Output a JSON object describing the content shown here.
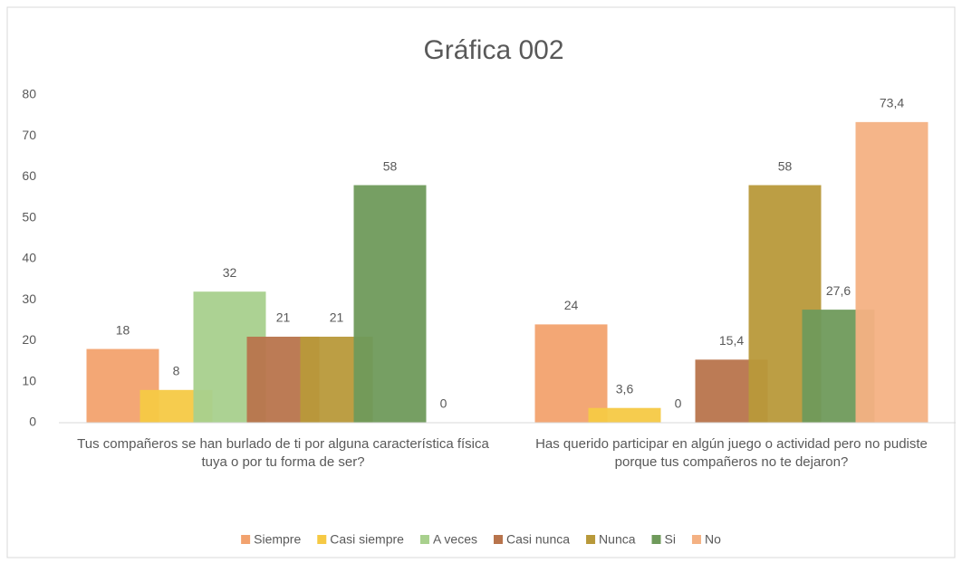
{
  "chart_data": {
    "type": "bar",
    "title": "Gráfica 002",
    "categories": [
      "Tus compañeros se han burlado de ti por alguna característica física tuya o por tu forma de ser?",
      "Has querido participar en algún juego o actividad pero no pudiste porque tus compañeros no te dejaron?"
    ],
    "series": [
      {
        "name": "Siempre",
        "color": "#f2a26e",
        "values": [
          18,
          24
        ],
        "value_labels": [
          "18",
          "24"
        ]
      },
      {
        "name": "Casi siempre",
        "color": "#f6c944",
        "values": [
          8,
          3.6
        ],
        "value_labels": [
          "8",
          "3,6"
        ]
      },
      {
        "name": "A veces",
        "color": "#a8d08d",
        "values": [
          32,
          0
        ],
        "value_labels": [
          "32",
          "0"
        ]
      },
      {
        "name": "Casi nunca",
        "color": "#b8744c",
        "values": [
          21,
          15.4
        ],
        "value_labels": [
          "21",
          "15,4"
        ]
      },
      {
        "name": "Nunca",
        "color": "#b8993a",
        "values": [
          21,
          58
        ],
        "value_labels": [
          "21",
          "58"
        ]
      },
      {
        "name": "Si",
        "color": "#6f9a5b",
        "values": [
          58,
          27.6
        ],
        "value_labels": [
          "58",
          "27,6"
        ]
      },
      {
        "name": "No",
        "color": "#f4b183",
        "values": [
          0,
          73.4
        ],
        "value_labels": [
          "0",
          "73,4"
        ]
      }
    ],
    "ylim": [
      0,
      80
    ],
    "yticks": [
      0,
      10,
      20,
      30,
      40,
      50,
      60,
      70,
      80
    ],
    "grid": false,
    "legend": "bottom"
  }
}
